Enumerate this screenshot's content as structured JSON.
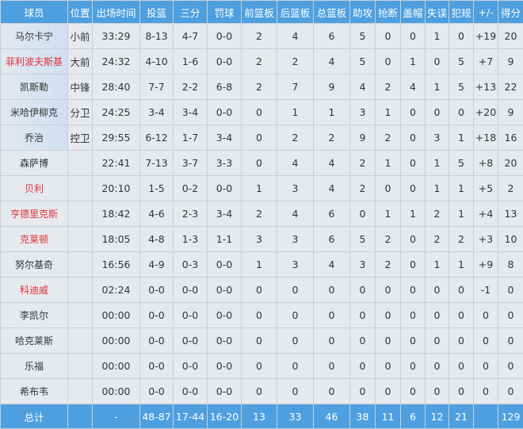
{
  "headers": [
    "球员",
    "位置",
    "出场时间",
    "投篮",
    "三分",
    "罚球",
    "前篮板",
    "后篮板",
    "总篮板",
    "助攻",
    "抢断",
    "盖帽",
    "失误",
    "犯规",
    "+/-",
    "得分"
  ],
  "colors": {
    "header_bg": "#4d9fe0",
    "row_bg": "#e6eaee",
    "highlight_name": "#e0303a"
  },
  "players": [
    {
      "name": "马尔卡宁",
      "pos": "小前",
      "red": false,
      "starter": true,
      "stats": [
        "33:29",
        "8-13",
        "4-7",
        "0-0",
        "2",
        "4",
        "6",
        "5",
        "0",
        "0",
        "1",
        "0",
        "+19",
        "20"
      ]
    },
    {
      "name": "菲利波夫斯基",
      "pos": "大前",
      "red": true,
      "starter": true,
      "stats": [
        "24:32",
        "4-10",
        "1-6",
        "0-0",
        "2",
        "2",
        "4",
        "5",
        "0",
        "1",
        "0",
        "5",
        "+7",
        "9"
      ]
    },
    {
      "name": "凯斯勒",
      "pos": "中锋",
      "red": false,
      "starter": true,
      "stats": [
        "28:40",
        "7-7",
        "2-2",
        "6-8",
        "2",
        "7",
        "9",
        "4",
        "2",
        "4",
        "1",
        "5",
        "+13",
        "22"
      ]
    },
    {
      "name": "米哈伊柳克",
      "pos": "分卫",
      "red": false,
      "starter": true,
      "stats": [
        "24:25",
        "3-4",
        "3-4",
        "0-0",
        "0",
        "1",
        "1",
        "3",
        "1",
        "0",
        "0",
        "0",
        "+20",
        "9"
      ]
    },
    {
      "name": "乔治",
      "pos": "控卫",
      "red": false,
      "starter": true,
      "stats": [
        "29:55",
        "6-12",
        "1-7",
        "3-4",
        "0",
        "2",
        "2",
        "9",
        "2",
        "0",
        "3",
        "1",
        "+18",
        "16"
      ]
    },
    {
      "name": "森萨博",
      "pos": "",
      "red": false,
      "starter": false,
      "stats": [
        "22:41",
        "7-13",
        "3-7",
        "3-3",
        "0",
        "4",
        "4",
        "2",
        "1",
        "0",
        "1",
        "5",
        "+8",
        "20"
      ]
    },
    {
      "name": "贝利",
      "pos": "",
      "red": true,
      "starter": false,
      "stats": [
        "20:10",
        "1-5",
        "0-2",
        "0-0",
        "1",
        "3",
        "4",
        "2",
        "0",
        "0",
        "1",
        "1",
        "+5",
        "2"
      ]
    },
    {
      "name": "亨德里克斯",
      "pos": "",
      "red": true,
      "starter": false,
      "stats": [
        "18:42",
        "4-6",
        "2-3",
        "3-4",
        "2",
        "4",
        "6",
        "0",
        "1",
        "1",
        "2",
        "1",
        "+4",
        "13"
      ]
    },
    {
      "name": "克莱顿",
      "pos": "",
      "red": true,
      "starter": false,
      "stats": [
        "18:05",
        "4-8",
        "1-3",
        "1-1",
        "3",
        "3",
        "6",
        "5",
        "2",
        "0",
        "2",
        "2",
        "+3",
        "10"
      ]
    },
    {
      "name": "努尔基奇",
      "pos": "",
      "red": false,
      "starter": false,
      "stats": [
        "16:56",
        "4-9",
        "0-3",
        "0-0",
        "1",
        "3",
        "4",
        "3",
        "2",
        "0",
        "1",
        "1",
        "+9",
        "8"
      ]
    },
    {
      "name": "科迪威",
      "pos": "",
      "red": true,
      "starter": false,
      "stats": [
        "02:24",
        "0-0",
        "0-0",
        "0-0",
        "0",
        "0",
        "0",
        "0",
        "0",
        "0",
        "0",
        "0",
        "-1",
        "0"
      ]
    },
    {
      "name": "李凯尔",
      "pos": "",
      "red": false,
      "starter": false,
      "stats": [
        "00:00",
        "0-0",
        "0-0",
        "0-0",
        "0",
        "0",
        "0",
        "0",
        "0",
        "0",
        "0",
        "0",
        "0",
        "0"
      ]
    },
    {
      "name": "哈克莱斯",
      "pos": "",
      "red": false,
      "starter": false,
      "stats": [
        "00:00",
        "0-0",
        "0-0",
        "0-0",
        "0",
        "0",
        "0",
        "0",
        "0",
        "0",
        "0",
        "0",
        "0",
        "0"
      ]
    },
    {
      "name": "乐福",
      "pos": "",
      "red": false,
      "starter": false,
      "stats": [
        "00:00",
        "0-0",
        "0-0",
        "0-0",
        "0",
        "0",
        "0",
        "0",
        "0",
        "0",
        "0",
        "0",
        "0",
        "0"
      ]
    },
    {
      "name": "希布韦",
      "pos": "",
      "red": false,
      "starter": false,
      "stats": [
        "00:00",
        "0-0",
        "0-0",
        "0-0",
        "0",
        "0",
        "0",
        "0",
        "0",
        "0",
        "0",
        "0",
        "0",
        "0"
      ]
    }
  ],
  "totals": {
    "label": "总计",
    "pos": "",
    "stats": [
      "-",
      "48-87",
      "17-44",
      "16-20",
      "13",
      "33",
      "46",
      "38",
      "11",
      "6",
      "12",
      "21",
      "",
      "129"
    ]
  }
}
